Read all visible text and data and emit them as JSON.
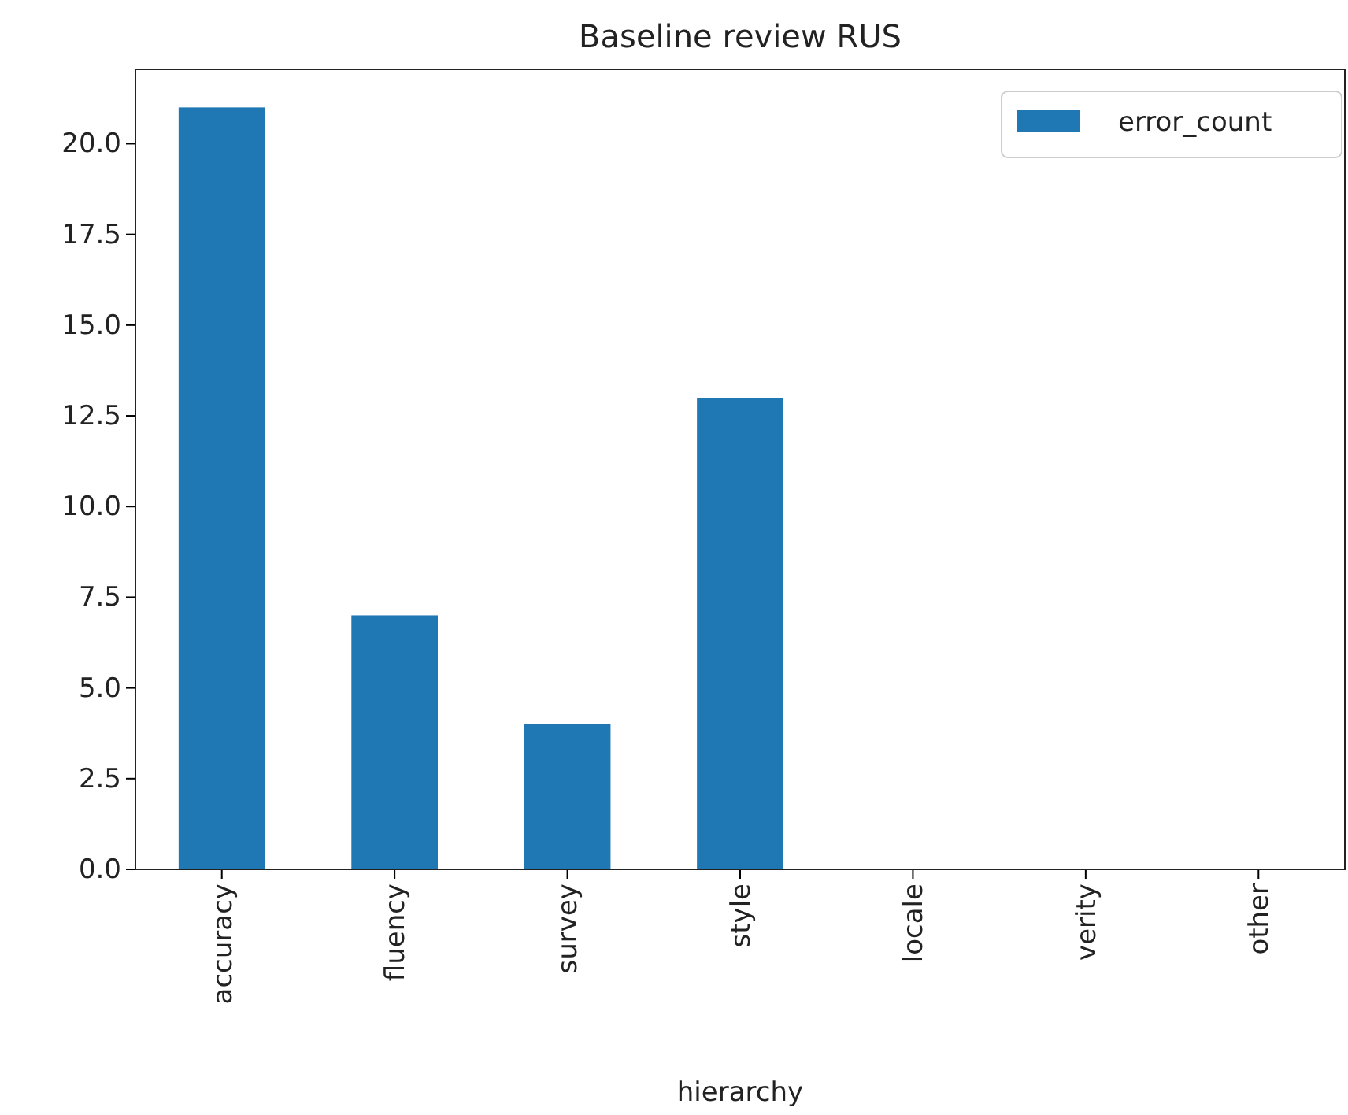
{
  "chart_data": {
    "type": "bar",
    "title": "Baseline review RUS",
    "xlabel": "hierarchy",
    "categories": [
      "accuracy",
      "fluency",
      "survey",
      "style",
      "locale",
      "verity",
      "other"
    ],
    "series": [
      {
        "name": "error_count",
        "color": "#1f77b4",
        "values": [
          21,
          7,
          4,
          13,
          0,
          0,
          0
        ]
      }
    ],
    "ylim": [
      0,
      22.05
    ],
    "yticks": [
      {
        "value": 0,
        "label": "0.0"
      },
      {
        "value": 2.5,
        "label": "2.5"
      },
      {
        "value": 5,
        "label": "5.0"
      },
      {
        "value": 7.5,
        "label": "7.5"
      },
      {
        "value": 10,
        "label": "10.0"
      },
      {
        "value": 12.5,
        "label": "12.5"
      },
      {
        "value": 15,
        "label": "15.0"
      },
      {
        "value": 17.5,
        "label": "17.5"
      },
      {
        "value": 20,
        "label": "20.0"
      }
    ],
    "legend": "top right",
    "grid": false
  }
}
